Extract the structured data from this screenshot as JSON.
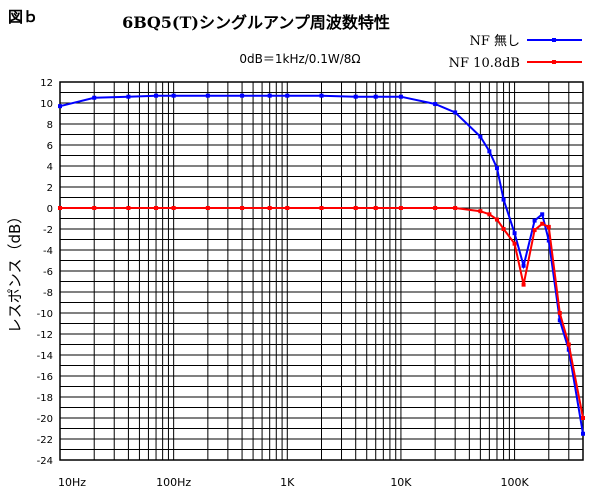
{
  "figure_label": "図ｂ",
  "chart_data": {
    "type": "line",
    "title": "6BQ5(T)シングルアンプ周波数特性",
    "subtitle": "0dB＝1kHz/0.1W/8Ω",
    "xlabel": "",
    "ylabel": "レスポンス（dB）",
    "x_scale": "log",
    "xlim": [
      10,
      400000
    ],
    "ylim": [
      -24,
      12
    ],
    "y_ticks": [
      12,
      10,
      8,
      6,
      4,
      2,
      0,
      -2,
      -4,
      -6,
      -8,
      -10,
      -12,
      -14,
      -16,
      -18,
      -20,
      -22,
      -24
    ],
    "x_tick_labels": [
      {
        "x": 10,
        "label": "10Hz"
      },
      {
        "x": 100,
        "label": "100Hz"
      },
      {
        "x": 1000,
        "label": "1K"
      },
      {
        "x": 10000,
        "label": "10K"
      },
      {
        "x": 100000,
        "label": "100K"
      }
    ],
    "grid": true,
    "legend_position": "top-right",
    "series": [
      {
        "name": "NF 無し",
        "color": "#0000ff",
        "x": [
          10,
          20,
          40,
          70,
          100,
          200,
          400,
          700,
          1000,
          2000,
          4000,
          6000,
          10000,
          20000,
          30000,
          50000,
          60000,
          70000,
          80000,
          100000,
          120000,
          150000,
          175000,
          200000,
          250000,
          300000,
          400000
        ],
        "y": [
          9.7,
          10.5,
          10.6,
          10.7,
          10.7,
          10.7,
          10.7,
          10.7,
          10.7,
          10.7,
          10.6,
          10.6,
          10.6,
          9.9,
          9.1,
          6.8,
          5.4,
          3.8,
          0.8,
          -2.4,
          -5.5,
          -1.2,
          -0.6,
          -3.1,
          -10.7,
          -13.5,
          -21.5
        ]
      },
      {
        "name": "NF 10.8dB",
        "color": "#ff0000",
        "x": [
          10,
          20,
          40,
          70,
          100,
          200,
          400,
          700,
          1000,
          2000,
          4000,
          6000,
          10000,
          20000,
          30000,
          50000,
          60000,
          70000,
          80000,
          100000,
          120000,
          150000,
          175000,
          200000,
          250000,
          300000,
          400000
        ],
        "y": [
          0,
          0,
          0,
          0,
          0,
          0,
          0,
          0,
          0,
          0,
          0,
          0,
          0,
          0,
          0,
          -0.3,
          -0.6,
          -1.1,
          -2.0,
          -3.4,
          -7.3,
          -2.1,
          -1.5,
          -1.8,
          -10.0,
          -13.0,
          -20.0
        ]
      }
    ]
  }
}
